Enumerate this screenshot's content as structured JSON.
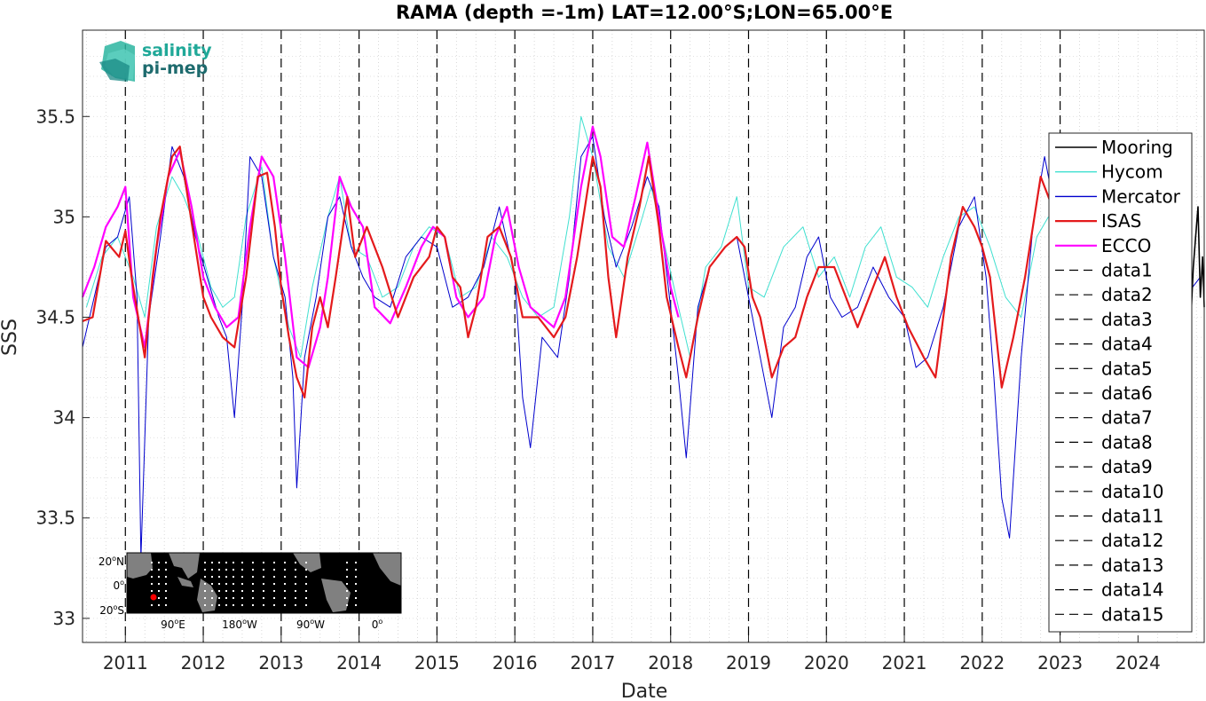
{
  "chart_data": {
    "type": "line",
    "title": "RAMA (depth =-1m) LAT=12.00°S;LON=65.00°E",
    "xlabel": "Date",
    "ylabel": "SSS",
    "xlim": [
      2010.45,
      2024.85
    ],
    "ylim": [
      32.88,
      35.93
    ],
    "x_ticks": [
      2011,
      2012,
      2013,
      2014,
      2015,
      2016,
      2017,
      2018,
      2019,
      2020,
      2021,
      2022,
      2023,
      2024
    ],
    "y_ticks": [
      33,
      33.5,
      34,
      34.5,
      35,
      35.5
    ],
    "y_tick_labels": [
      "33",
      "33.5",
      "34",
      "34.5",
      "35",
      "35.5"
    ],
    "grid": true,
    "legend_position": "right",
    "dashed_year_lines": [
      2011,
      2012,
      2013,
      2014,
      2015,
      2016,
      2017,
      2018,
      2019,
      2020,
      2021,
      2022,
      2023
    ],
    "series": [
      {
        "name": "Mooring",
        "color": "#000000",
        "x": [
          2024.68,
          2024.71,
          2024.74,
          2024.77,
          2024.8,
          2024.83,
          2024.85
        ],
        "y": [
          34.5,
          34.75,
          34.9,
          35.05,
          34.6,
          34.8,
          34.55
        ]
      },
      {
        "name": "Hycom",
        "color": "#40e0d0",
        "x": [
          2010.5,
          2010.7,
          2010.9,
          2011.1,
          2011.25,
          2011.4,
          2011.6,
          2011.75,
          2011.9,
          2012.1,
          2012.25,
          2012.4,
          2012.55,
          2012.75,
          2012.9,
          2013.1,
          2013.25,
          2013.4,
          2013.6,
          2013.75,
          2013.9,
          2014.1,
          2014.3,
          2014.5,
          2014.7,
          2014.9,
          2015.1,
          2015.3,
          2015.5,
          2015.7,
          2015.9,
          2016.1,
          2016.3,
          2016.5,
          2016.7,
          2016.85,
          2017.0,
          2017.2,
          2017.4,
          2017.6,
          2017.75,
          2017.9,
          2018.1,
          2018.25,
          2018.45,
          2018.65,
          2018.85,
          2019.0,
          2019.2,
          2019.45,
          2019.7,
          2019.9,
          2020.1,
          2020.3,
          2020.5,
          2020.7,
          2020.9,
          2021.1,
          2021.3,
          2021.5,
          2021.7,
          2021.9,
          2022.1,
          2022.3,
          2022.5,
          2022.7,
          2022.85
        ],
        "y": [
          34.55,
          34.8,
          34.9,
          34.7,
          34.5,
          34.95,
          35.2,
          35.1,
          34.95,
          34.65,
          34.55,
          34.6,
          35.0,
          35.25,
          34.8,
          34.45,
          34.3,
          34.65,
          35.0,
          35.2,
          34.85,
          34.8,
          34.6,
          34.65,
          34.85,
          34.95,
          34.9,
          34.6,
          34.65,
          34.9,
          34.8,
          34.6,
          34.5,
          34.55,
          35.0,
          35.5,
          35.3,
          34.85,
          34.7,
          34.95,
          35.15,
          34.9,
          34.55,
          34.3,
          34.75,
          34.85,
          35.1,
          34.65,
          34.6,
          34.85,
          34.95,
          34.7,
          34.8,
          34.6,
          34.85,
          34.95,
          34.7,
          34.65,
          34.55,
          34.8,
          35.0,
          35.05,
          34.85,
          34.6,
          34.5,
          34.9,
          35.0
        ]
      },
      {
        "name": "Mercator",
        "color": "#0000cd",
        "x": [
          2010.45,
          2010.6,
          2010.75,
          2010.9,
          2011.05,
          2011.15,
          2011.2,
          2011.3,
          2011.45,
          2011.6,
          2011.75,
          2011.9,
          2012.05,
          2012.2,
          2012.3,
          2012.4,
          2012.5,
          2012.6,
          2012.75,
          2012.9,
          2013.05,
          2013.15,
          2013.2,
          2013.3,
          2013.45,
          2013.6,
          2013.75,
          2013.9,
          2014.05,
          2014.2,
          2014.4,
          2014.6,
          2014.8,
          2015.0,
          2015.2,
          2015.4,
          2015.6,
          2015.8,
          2016.0,
          2016.1,
          2016.2,
          2016.35,
          2016.55,
          2016.7,
          2016.85,
          2017.0,
          2017.15,
          2017.3,
          2017.5,
          2017.7,
          2017.85,
          2018.0,
          2018.1,
          2018.2,
          2018.35,
          2018.5,
          2018.7,
          2018.85,
          2019.0,
          2019.15,
          2019.3,
          2019.45,
          2019.6,
          2019.75,
          2019.9,
          2020.05,
          2020.2,
          2020.4,
          2020.6,
          2020.8,
          2021.0,
          2021.15,
          2021.3,
          2021.5,
          2021.7,
          2021.9,
          2022.05,
          2022.15,
          2022.25,
          2022.35,
          2022.5,
          2022.65,
          2022.8,
          2022.9,
          2023.05,
          2023.25,
          2023.45,
          2023.6,
          2023.8,
          2024.0,
          2024.2,
          2024.4,
          2024.6,
          2024.8
        ],
        "y": [
          34.35,
          34.6,
          34.85,
          34.9,
          35.1,
          34.6,
          33.3,
          34.5,
          34.9,
          35.35,
          35.2,
          34.9,
          34.7,
          34.5,
          34.4,
          34.0,
          34.55,
          35.3,
          35.2,
          34.8,
          34.6,
          34.2,
          33.65,
          34.3,
          34.6,
          35.0,
          35.1,
          34.85,
          34.7,
          34.6,
          34.55,
          34.8,
          34.9,
          34.85,
          34.55,
          34.6,
          34.75,
          35.05,
          34.7,
          34.1,
          33.85,
          34.4,
          34.3,
          34.7,
          35.3,
          35.4,
          35.0,
          34.75,
          34.95,
          35.2,
          35.05,
          34.55,
          34.2,
          33.8,
          34.55,
          34.75,
          34.85,
          34.9,
          34.6,
          34.3,
          34.0,
          34.45,
          34.55,
          34.8,
          34.9,
          34.6,
          34.5,
          34.55,
          34.75,
          34.6,
          34.5,
          34.25,
          34.3,
          34.55,
          34.95,
          35.1,
          34.7,
          34.2,
          33.6,
          33.4,
          34.3,
          34.95,
          35.3,
          35.1,
          34.9,
          34.95,
          35.2,
          35.4,
          35.25,
          35.05,
          34.95,
          34.85,
          34.6,
          34.7
        ]
      },
      {
        "name": "ISAS",
        "color": "#e41a1c",
        "x": [
          2010.45,
          2010.58,
          2010.75,
          2010.92,
          2011.0,
          2011.08,
          2011.25,
          2011.35,
          2011.45,
          2011.6,
          2011.7,
          2011.8,
          2011.92,
          2012.0,
          2012.1,
          2012.25,
          2012.4,
          2012.55,
          2012.7,
          2012.82,
          2012.92,
          2013.0,
          2013.1,
          2013.2,
          2013.3,
          2013.4,
          2013.5,
          2013.6,
          2013.7,
          2013.85,
          2013.95,
          2014.1,
          2014.3,
          2014.5,
          2014.7,
          2014.9,
          2015.0,
          2015.1,
          2015.2,
          2015.3,
          2015.4,
          2015.5,
          2015.65,
          2015.8,
          2015.95,
          2016.1,
          2016.3,
          2016.5,
          2016.65,
          2016.8,
          2016.9,
          2017.0,
          2017.1,
          2017.2,
          2017.3,
          2017.45,
          2017.6,
          2017.72,
          2017.85,
          2017.95,
          2018.1,
          2018.2,
          2018.35,
          2018.5,
          2018.7,
          2018.85,
          2018.95,
          2019.05,
          2019.15,
          2019.3,
          2019.45,
          2019.6,
          2019.75,
          2019.9,
          2020.0,
          2020.1,
          2020.25,
          2020.4,
          2020.6,
          2020.75,
          2020.9,
          2021.05,
          2021.25,
          2021.4,
          2021.6,
          2021.75,
          2021.9,
          2022.0,
          2022.1,
          2022.25,
          2022.4,
          2022.55,
          2022.75,
          2022.9
        ],
        "y": [
          34.48,
          34.5,
          34.88,
          34.8,
          34.93,
          34.7,
          34.3,
          34.7,
          35.0,
          35.3,
          35.35,
          35.1,
          34.8,
          34.6,
          34.5,
          34.4,
          34.35,
          34.7,
          35.2,
          35.22,
          34.95,
          34.65,
          34.4,
          34.2,
          34.1,
          34.45,
          34.6,
          34.45,
          34.7,
          35.1,
          34.8,
          34.95,
          34.75,
          34.5,
          34.7,
          34.8,
          34.95,
          34.9,
          34.7,
          34.65,
          34.4,
          34.55,
          34.9,
          34.95,
          34.8,
          34.5,
          34.5,
          34.4,
          34.5,
          34.8,
          35.05,
          35.3,
          35.15,
          34.7,
          34.4,
          34.8,
          35.05,
          35.3,
          34.95,
          34.6,
          34.35,
          34.2,
          34.5,
          34.75,
          34.85,
          34.9,
          34.85,
          34.6,
          34.5,
          34.2,
          34.35,
          34.4,
          34.6,
          34.75,
          34.75,
          34.75,
          34.6,
          34.45,
          34.65,
          34.8,
          34.6,
          34.45,
          34.3,
          34.2,
          34.8,
          35.05,
          34.95,
          34.85,
          34.7,
          34.15,
          34.4,
          34.7,
          35.2,
          35.05
        ]
      },
      {
        "name": "ECCO",
        "color": "#ff00ff",
        "x": [
          2010.45,
          2010.6,
          2010.75,
          2010.9,
          2011.0,
          2011.1,
          2011.25,
          2011.4,
          2011.55,
          2011.7,
          2011.85,
          2012.0,
          2012.15,
          2012.3,
          2012.45,
          2012.6,
          2012.75,
          2012.9,
          2013.05,
          2013.2,
          2013.35,
          2013.5,
          2013.6,
          2013.75,
          2013.9,
          2014.05,
          2014.2,
          2014.4,
          2014.6,
          2014.8,
          2014.95,
          2015.1,
          2015.25,
          2015.4,
          2015.6,
          2015.75,
          2015.9,
          2016.05,
          2016.2,
          2016.35,
          2016.5,
          2016.65,
          2016.85,
          2017.0,
          2017.1,
          2017.25,
          2017.4,
          2017.55,
          2017.7,
          2017.85,
          2018.0,
          2018.1
        ],
        "y": [
          34.6,
          34.75,
          34.95,
          35.05,
          35.15,
          34.6,
          34.35,
          34.85,
          35.2,
          35.33,
          35.05,
          34.7,
          34.55,
          34.45,
          34.5,
          34.95,
          35.3,
          35.2,
          34.8,
          34.3,
          34.25,
          34.45,
          34.7,
          35.2,
          35.05,
          34.95,
          34.55,
          34.47,
          34.65,
          34.85,
          34.95,
          34.9,
          34.6,
          34.5,
          34.6,
          34.9,
          35.05,
          34.75,
          34.55,
          34.5,
          34.45,
          34.6,
          35.15,
          35.45,
          35.3,
          34.9,
          34.85,
          35.1,
          35.37,
          35.0,
          34.65,
          34.5
        ]
      }
    ],
    "legend_extra_entries": [
      "data1",
      "data2",
      "data3",
      "data4",
      "data5",
      "data6",
      "data7",
      "data8",
      "data9",
      "data10",
      "data11",
      "data12",
      "data13",
      "data14",
      "data15"
    ]
  },
  "logo": {
    "line1": "salinity",
    "line2": "pi-mep",
    "color1": "#20a898",
    "color2": "#1e6b6e"
  },
  "inset_map": {
    "lat_labels": [
      "20",
      "0",
      "20"
    ],
    "lat_suffix": [
      "N",
      "",
      "S"
    ],
    "lon_labels": [
      "90",
      "180",
      "90",
      "0"
    ],
    "lon_suffix": [
      "E",
      "W",
      "W",
      ""
    ],
    "degree_mark": "o",
    "ocean_color": "#000000",
    "land_color": "#808080",
    "marker_color": "#ff0000"
  }
}
